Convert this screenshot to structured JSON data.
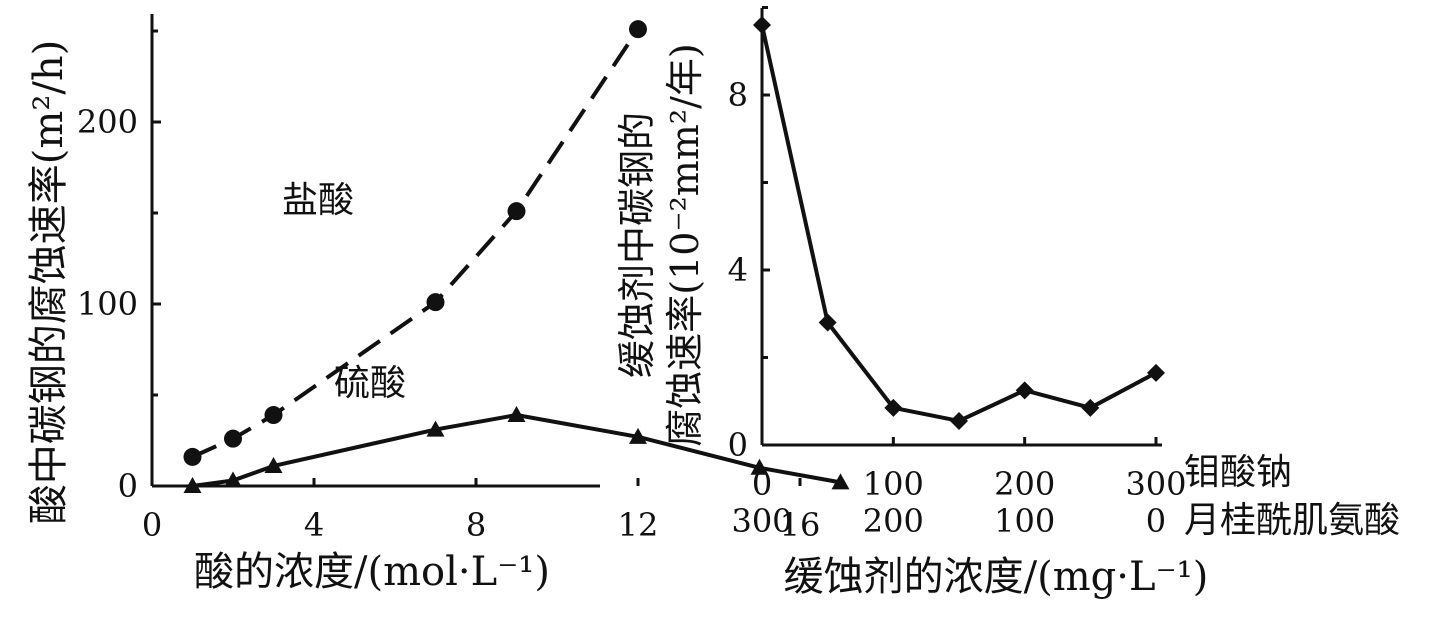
{
  "chart_data": [
    {
      "type": "line",
      "xlabel": "酸的浓度/(mol·L⁻¹)",
      "ylabel": "酸中碳钢的腐蚀速率(m²/h)",
      "xlim": [
        0,
        18
      ],
      "ylim": [
        0,
        255
      ],
      "x_ticks": [
        0,
        4,
        8,
        12,
        16
      ],
      "y_ticks": [
        0,
        100,
        200
      ],
      "series": [
        {
          "name": "盐酸",
          "style": "dashed",
          "marker": "circle",
          "x": [
            1,
            2,
            3,
            7,
            9,
            12
          ],
          "y": [
            16,
            26,
            39,
            101,
            151,
            251
          ]
        },
        {
          "name": "硫酸",
          "style": "solid",
          "marker": "triangle",
          "x": [
            1,
            2,
            3,
            7,
            9,
            12,
            15,
            17
          ],
          "y": [
            0,
            3,
            11,
            31,
            39,
            27,
            10,
            2
          ]
        }
      ]
    },
    {
      "type": "line",
      "xlabel": "缓蚀剂的浓度/(mg·L⁻¹)",
      "ylabel_line1": "缓蚀剂中碳钢的",
      "ylabel_line2": "腐蚀速率(10⁻²mm²/年)",
      "xlim": [
        0,
        300
      ],
      "ylim": [
        0,
        10
      ],
      "x_ticks": [
        0,
        100,
        200,
        300
      ],
      "x_ticks_secondary": [
        "300",
        "200",
        "100",
        "0"
      ],
      "x_row_label_1": "钼酸钠",
      "x_row_label_2": "月桂酰肌氨酸",
      "y_ticks": [
        0,
        4,
        8
      ],
      "series": [
        {
          "marker": "diamond",
          "x": [
            0,
            50,
            100,
            150,
            200,
            250,
            300
          ],
          "y": [
            9.6,
            2.8,
            0.85,
            0.55,
            1.25,
            0.85,
            1.65
          ]
        }
      ]
    }
  ]
}
